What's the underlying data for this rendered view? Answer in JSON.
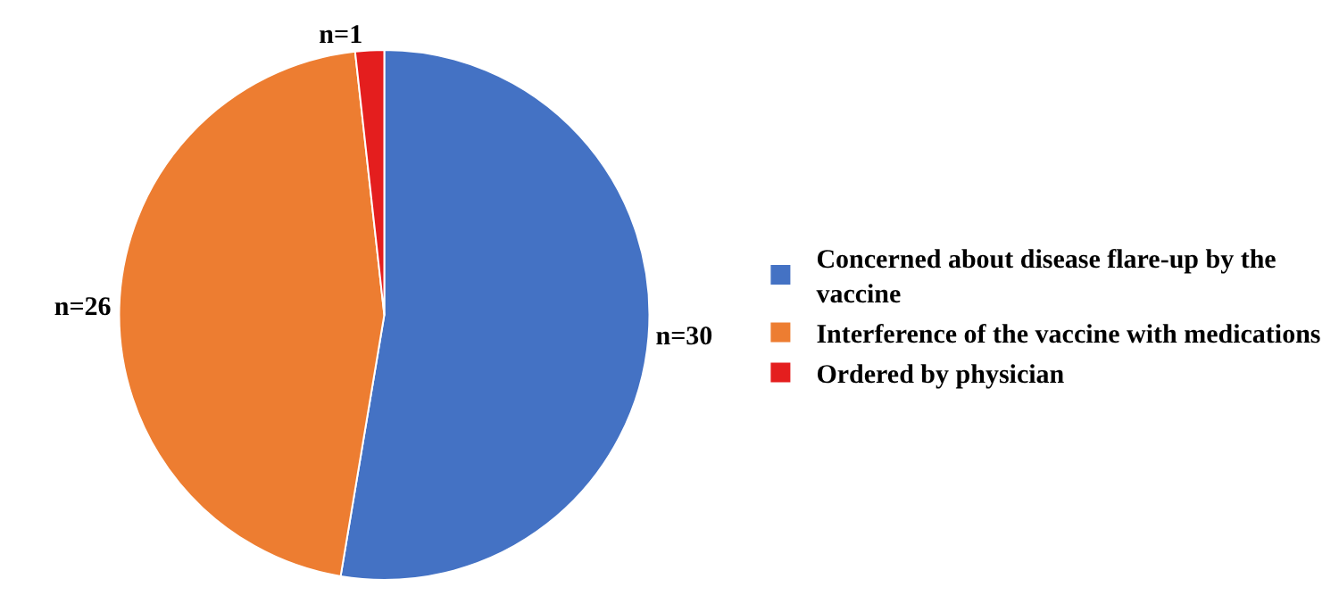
{
  "chart_data": {
    "type": "pie",
    "categories": [
      "Concerned about disease flare-up by the vaccine",
      "Interference of the vaccine with medications",
      "Ordered by physician"
    ],
    "values": [
      30,
      26,
      1
    ],
    "colors": [
      "#4472c4",
      "#ed7d31",
      "#e41e1e"
    ],
    "value_labels": [
      "n=30",
      "n=26",
      "n=1"
    ],
    "legend": "right"
  }
}
